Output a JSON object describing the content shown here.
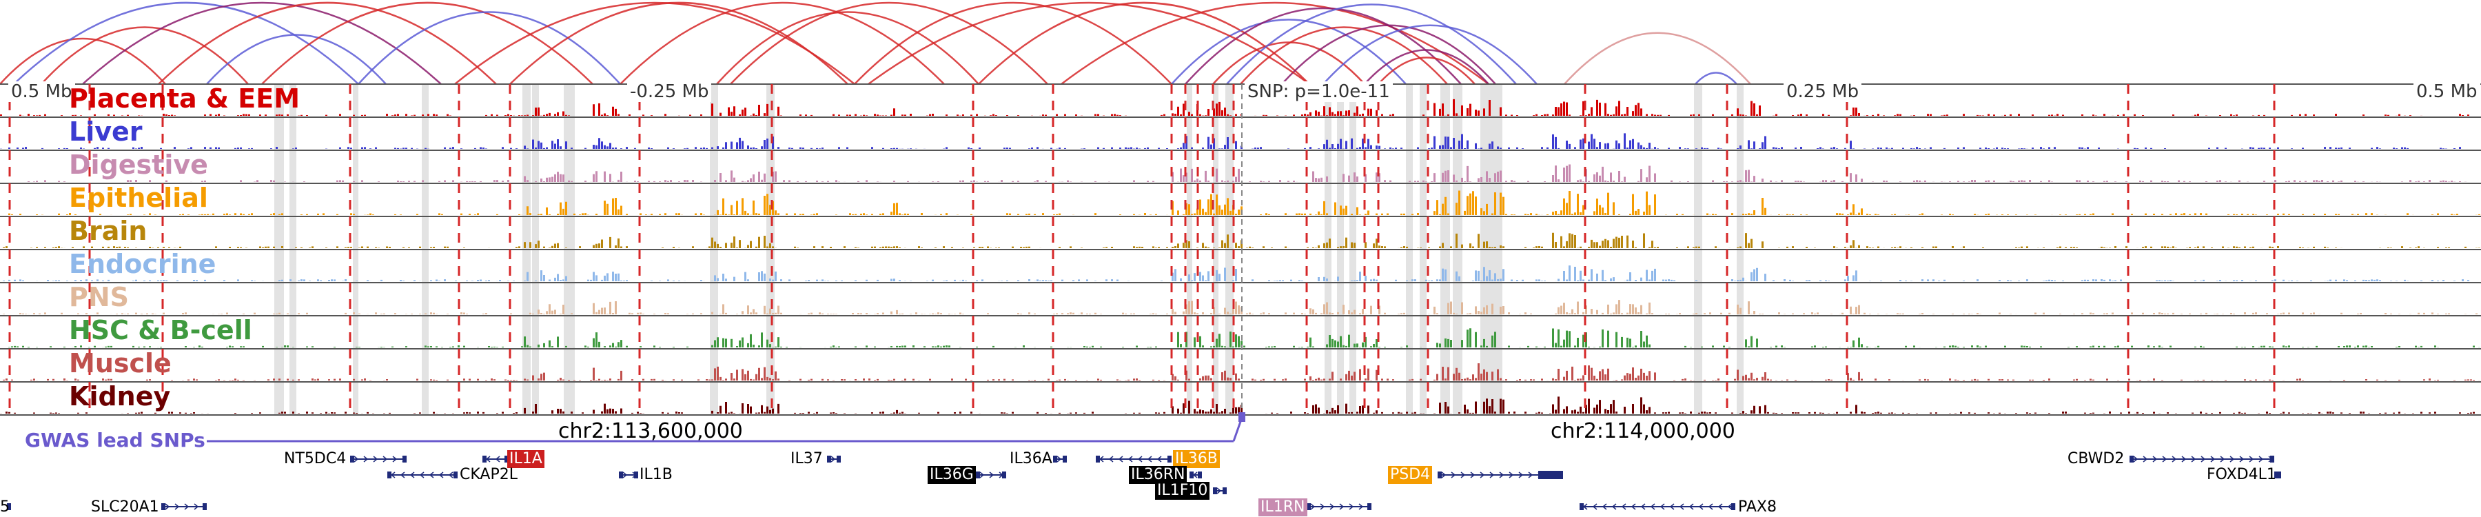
{
  "colors": {
    "loop_red": "#d62728",
    "loop_blue": "#5b5bd6",
    "loop_purple": "#8b1a6b",
    "loop_pink": "#d98f8f",
    "highlight_gray": "#d9d9d9",
    "boundary_red": "#d62728",
    "gene_navy": "#1f2a7a",
    "gwas": "#6a5acd"
  },
  "ruler": {
    "left_label": "0.5 Mb",
    "minus_label": "-0.25 Mb",
    "snp_label": "SNP: p=1.0e-11",
    "plus_label": "0.25 Mb",
    "right_label": "0.5 Mb"
  },
  "tracks": [
    {
      "label": "Placenta & EEM",
      "color": "#d40000"
    },
    {
      "label": "Liver",
      "color": "#3b3bd1"
    },
    {
      "label": "Digestive",
      "color": "#c78bb0"
    },
    {
      "label": "Epithelial",
      "color": "#f59c00"
    },
    {
      "label": "Brain",
      "color": "#b8860b"
    },
    {
      "label": "Endocrine",
      "color": "#8fb8ea"
    },
    {
      "label": "PNS",
      "color": "#e0b89a"
    },
    {
      "label": "HSC & B-cell",
      "color": "#3f9a3f"
    },
    {
      "label": "Muscle",
      "color": "#c0504d"
    },
    {
      "label": "Kidney",
      "color": "#6b0000"
    }
  ],
  "coordinates": {
    "left": "chr2:113,600,000",
    "right": "chr2:114,000,000"
  },
  "gwas": {
    "label": "GWAS lead SNPs"
  },
  "genes": [
    {
      "name": "NT5DC4",
      "row": 0,
      "highlight": null
    },
    {
      "name": "IL1A",
      "row": 0,
      "highlight": "#cc1f1f"
    },
    {
      "name": "CKAP2L",
      "row": 1,
      "highlight": null
    },
    {
      "name": "IL1B",
      "row": 1,
      "highlight": null
    },
    {
      "name": "IL37",
      "row": 0,
      "highlight": null
    },
    {
      "name": "IL36G",
      "row": 1,
      "highlight": "#000000"
    },
    {
      "name": "IL36A",
      "row": 0,
      "highlight": null
    },
    {
      "name": "IL36B",
      "row": 0,
      "highlight": "#f59c00"
    },
    {
      "name": "IL36RN",
      "row": 1,
      "highlight": "#000000"
    },
    {
      "name": "IL1F10",
      "row": 2,
      "highlight": "#000000"
    },
    {
      "name": "PSD4",
      "row": 1,
      "highlight": "#f59c00"
    },
    {
      "name": "IL1RN",
      "row": 3,
      "highlight": "#c78bb0"
    },
    {
      "name": "PAX8",
      "row": 3,
      "highlight": null
    },
    {
      "name": "CBWD2",
      "row": 0,
      "highlight": null
    },
    {
      "name": "FOXD4L1",
      "row": 1,
      "highlight": null
    },
    {
      "name": "SLC20A1",
      "row": 3,
      "highlight": null
    },
    {
      "name": "5",
      "row": 3,
      "highlight": null
    }
  ]
}
